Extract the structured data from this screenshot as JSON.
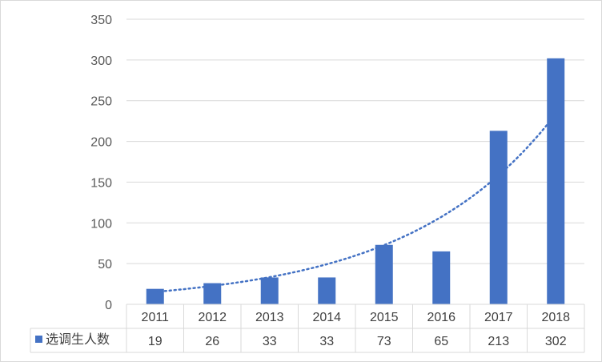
{
  "chart_data": {
    "type": "bar",
    "categories": [
      "2011",
      "2012",
      "2013",
      "2014",
      "2015",
      "2016",
      "2017",
      "2018"
    ],
    "series": [
      {
        "name": "选调生人数",
        "values": [
          19,
          26,
          33,
          33,
          73,
          65,
          213,
          302
        ]
      }
    ],
    "value_labels": [
      "19",
      "26",
      "33",
      "33",
      "73",
      "65",
      "213",
      "302"
    ],
    "ylim": [
      0,
      350
    ],
    "yticks": [
      0,
      50,
      100,
      150,
      200,
      250,
      300,
      350
    ],
    "ytick_labels": [
      "0",
      "50",
      "100",
      "150",
      "200",
      "250",
      "300",
      "350"
    ],
    "trendline": {
      "type": "exponential",
      "style": "dotted"
    },
    "data_table": true,
    "grid": true,
    "title": "",
    "xlabel": "",
    "ylabel": "",
    "colors": {
      "bar": "#4472C4",
      "grid": "#d9d9d9",
      "trend": "#4472C4"
    }
  }
}
